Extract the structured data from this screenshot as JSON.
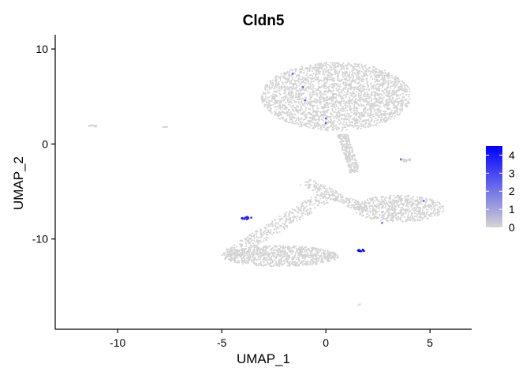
{
  "chart_data": {
    "type": "scatter",
    "title": "Cldn5",
    "xlabel": "UMAP_1",
    "ylabel": "UMAP_2",
    "xlim": [
      -13,
      7
    ],
    "ylim": [
      -19.5,
      11.5
    ],
    "xticks": [
      -10,
      -5,
      0,
      5
    ],
    "xtick_labels": [
      "-10",
      "-5",
      "0",
      "5"
    ],
    "yticks": [
      10,
      0,
      -10
    ],
    "ytick_labels": [
      "10",
      "0",
      "-10"
    ],
    "grid": false,
    "legend_position": "right",
    "color_scale": {
      "low_color": "#d3d3d3",
      "high_color": "#0000ff",
      "range": [
        0,
        4.5
      ],
      "ticks": [
        0,
        1,
        2,
        3,
        4
      ],
      "tick_labels": [
        "0",
        "1",
        "2",
        "3",
        "4"
      ]
    },
    "clusters": [
      {
        "name": "top-mass",
        "shape": "ellipse",
        "cx": 0.5,
        "cy": 5.0,
        "rx": 3.6,
        "ry": 3.6,
        "n": 2600,
        "expression": 0
      },
      {
        "name": "stem",
        "shape": "band",
        "x1": 0.8,
        "y1": 1.0,
        "x2": 1.4,
        "y2": -3.0,
        "width": 0.5,
        "n": 260,
        "expression": 0
      },
      {
        "name": "right-arm",
        "shape": "ellipse",
        "cx": 3.5,
        "cy": -6.8,
        "rx": 2.2,
        "ry": 1.4,
        "n": 650,
        "expression": 0
      },
      {
        "name": "middle-strand",
        "shape": "band",
        "x1": -1.0,
        "y1": -4.0,
        "x2": 2.0,
        "y2": -7.0,
        "width": 0.8,
        "n": 220,
        "expression": 0
      },
      {
        "name": "left-arm",
        "shape": "band",
        "x1": -4.5,
        "y1": -11.5,
        "x2": 0.0,
        "y2": -5.5,
        "width": 1.0,
        "n": 380,
        "expression": 0
      },
      {
        "name": "bottom-left-mass",
        "shape": "ellipse",
        "cx": -2.2,
        "cy": -11.8,
        "rx": 2.8,
        "ry": 1.1,
        "n": 900,
        "expression": 0
      },
      {
        "name": "far-left-group-1",
        "shape": "ellipse",
        "cx": -11.2,
        "cy": 1.9,
        "rx": 0.25,
        "ry": 0.12,
        "n": 14,
        "expression": 0
      },
      {
        "name": "far-left-group-2",
        "shape": "ellipse",
        "cx": -7.7,
        "cy": 1.8,
        "rx": 0.15,
        "ry": 0.08,
        "n": 6,
        "expression": 0
      },
      {
        "name": "right-small-group",
        "shape": "ellipse",
        "cx": 3.9,
        "cy": -1.7,
        "rx": 0.35,
        "ry": 0.2,
        "n": 22,
        "expression": 0
      },
      {
        "name": "bottom-speck",
        "shape": "ellipse",
        "cx": 1.6,
        "cy": -16.9,
        "rx": 0.1,
        "ry": 0.1,
        "n": 3,
        "expression": 0
      },
      {
        "name": "left-expressing-group",
        "shape": "ellipse",
        "cx": -3.8,
        "cy": -7.8,
        "rx": 0.3,
        "ry": 0.12,
        "n": 16,
        "expression": 3.6
      },
      {
        "name": "center-expressing-group",
        "shape": "ellipse",
        "cx": 1.7,
        "cy": -11.2,
        "rx": 0.18,
        "ry": 0.1,
        "n": 14,
        "expression": 4.3
      },
      {
        "name": "sparse-expressing-cells",
        "shape": "points",
        "points": [
          [
            -1.6,
            7.4
          ],
          [
            -1.1,
            6.0
          ],
          [
            -1.0,
            4.6
          ],
          [
            0.0,
            2.7
          ],
          [
            0.0,
            2.2
          ],
          [
            4.7,
            -6.0
          ],
          [
            2.7,
            -8.3
          ],
          [
            3.6,
            -1.6
          ]
        ],
        "expression": 2.5
      }
    ]
  }
}
